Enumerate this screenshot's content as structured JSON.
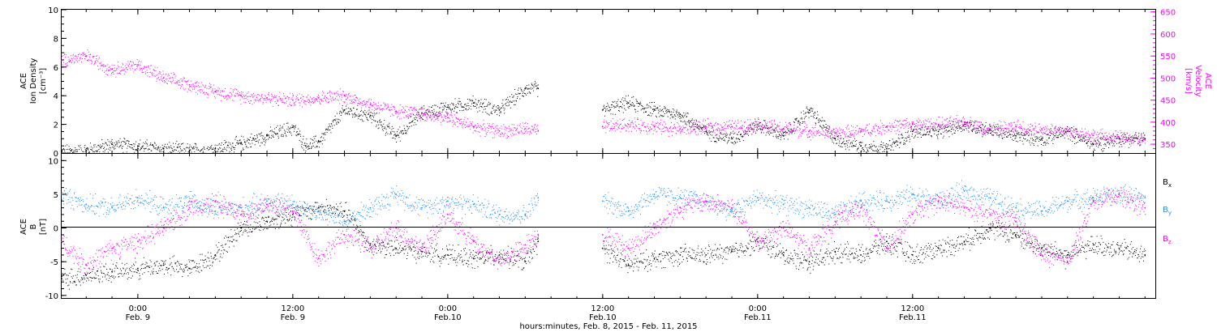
{
  "xlabel": "hours:minutes, Feb.  8, 2015 - Feb. 11, 2015",
  "x_ticks": [
    {
      "time": "0:00",
      "date": "Feb. 9"
    },
    {
      "time": "12:00",
      "date": "Feb. 9"
    },
    {
      "time": "0:00",
      "date": "Feb.10"
    },
    {
      "time": "12:00",
      "date": "Feb.10"
    },
    {
      "time": "0:00",
      "date": "Feb.11"
    },
    {
      "time": "12:00",
      "date": "Feb.11"
    }
  ],
  "top_panel": {
    "left_label": [
      "ACE",
      "Ion Density",
      "[cm⁻³]"
    ],
    "right_label": [
      "ACE",
      "Velocity",
      "[km/s]"
    ],
    "left_ticks": [
      "0",
      "2",
      "4",
      "6",
      "8",
      "10"
    ],
    "right_ticks": [
      "350",
      "400",
      "450",
      "500",
      "550",
      "600",
      "650"
    ]
  },
  "bottom_panel": {
    "left_label": [
      "ACE",
      "B",
      "[nT]"
    ],
    "left_ticks": [
      "-10",
      "-5",
      "0",
      "5",
      "10"
    ],
    "legend": [
      {
        "name": "B",
        "sub": "x",
        "color": "#000000"
      },
      {
        "name": "B",
        "sub": "y",
        "color": "#1e90ff"
      },
      {
        "name": "B",
        "sub": "z",
        "color": "#ff00ff"
      }
    ]
  },
  "colors": {
    "density": "#000000",
    "velocity": "#ff00ff",
    "bx": "#000000",
    "by": "#1e90ff",
    "bz": "#ff00ff",
    "velocity_axis": "#ff00ff"
  },
  "chart_data": [
    {
      "type": "scatter",
      "title": "",
      "x_unit": "hours from 2015-02-08 00:00 UT",
      "xlim": [
        18.1,
        102.8
      ],
      "gap": [
        55,
        60
      ],
      "series": [
        {
          "name": "Ion Density",
          "axis": "left",
          "ylim": [
            0,
            10
          ],
          "x": [
            18.1,
            20,
            22,
            24,
            26,
            28,
            30,
            32,
            34,
            36,
            37,
            38,
            40,
            42,
            44,
            46,
            48,
            50,
            52,
            54,
            55,
            60,
            62,
            64,
            66,
            68,
            70,
            72,
            74,
            76,
            78,
            80,
            82,
            84,
            86,
            88,
            90,
            92,
            94,
            96,
            98,
            100,
            102
          ],
          "values": [
            0.1,
            0.2,
            0.6,
            0.5,
            0.3,
            0.2,
            0.3,
            0.7,
            1.2,
            1.8,
            0.5,
            0.8,
            3.0,
            2.6,
            1.2,
            2.8,
            3.2,
            3.5,
            3.0,
            4.5,
            4.5,
            3.0,
            3.5,
            3.0,
            2.7,
            1.5,
            1.0,
            2.0,
            1.2,
            3.0,
            1.0,
            0.5,
            0.3,
            1.5,
            1.5,
            2.0,
            1.6,
            1.2,
            1.0,
            1.5,
            0.6,
            1.0,
            1.0
          ]
        },
        {
          "name": "Velocity",
          "axis": "right",
          "ylim": [
            330,
            655
          ],
          "x": [
            18.1,
            20,
            22,
            24,
            26,
            28,
            30,
            32,
            34,
            36,
            38,
            40,
            42,
            44,
            46,
            48,
            50,
            52,
            54,
            55,
            60,
            62,
            64,
            66,
            68,
            70,
            72,
            74,
            76,
            78,
            80,
            82,
            84,
            86,
            88,
            90,
            92,
            94,
            96,
            98,
            100,
            102
          ],
          "values": [
            540,
            550,
            520,
            530,
            500,
            485,
            470,
            460,
            455,
            450,
            455,
            460,
            440,
            425,
            420,
            410,
            390,
            380,
            385,
            380,
            390,
            395,
            390,
            385,
            390,
            390,
            395,
            385,
            380,
            375,
            380,
            390,
            395,
            395,
            400,
            385,
            390,
            385,
            380,
            370,
            365,
            360
          ]
        }
      ]
    },
    {
      "type": "scatter",
      "title": "",
      "x_unit": "hours from 2015-02-08 00:00 UT",
      "xlim": [
        18.1,
        102.8
      ],
      "ylim": [
        -10.5,
        11
      ],
      "gap": [
        55,
        60
      ],
      "series": [
        {
          "name": "Bx",
          "x": [
            18.1,
            20,
            22,
            24,
            26,
            28,
            30,
            32,
            34,
            36,
            38,
            40,
            42,
            44,
            46,
            48,
            50,
            52,
            54,
            55,
            60,
            62,
            64,
            66,
            68,
            70,
            72,
            74,
            76,
            78,
            80,
            82,
            84,
            86,
            88,
            90,
            92,
            94,
            96,
            98,
            100,
            102
          ],
          "values": [
            -7.5,
            -7.0,
            -6.5,
            -6.0,
            -5.5,
            -6.0,
            -4.0,
            0.0,
            1.0,
            2.0,
            3.0,
            2.5,
            -2.5,
            -3.0,
            -3.5,
            -4.0,
            -4.5,
            -4.0,
            -5.0,
            -2.0,
            -3.0,
            -5.5,
            -4.5,
            -4.0,
            -4.0,
            -3.5,
            -2.0,
            -4.0,
            -5.0,
            -3.5,
            -4.0,
            -2.0,
            -4.0,
            -3.0,
            -2.0,
            0.0,
            -1.0,
            -3.0,
            -4.0,
            -2.5,
            -3.0,
            -4.0
          ]
        },
        {
          "name": "By",
          "x": [
            18.1,
            20,
            22,
            24,
            26,
            28,
            30,
            32,
            34,
            36,
            38,
            40,
            42,
            44,
            46,
            48,
            50,
            52,
            54,
            55,
            60,
            62,
            64,
            66,
            68,
            70,
            72,
            74,
            76,
            78,
            80,
            82,
            84,
            86,
            88,
            90,
            92,
            94,
            96,
            98,
            100,
            102
          ],
          "values": [
            5.0,
            3.5,
            3.0,
            4.5,
            3.0,
            4.0,
            2.5,
            3.0,
            4.0,
            3.5,
            2.5,
            1.0,
            3.0,
            5.0,
            3.0,
            4.0,
            3.5,
            2.0,
            2.0,
            4.5,
            4.0,
            2.5,
            5.0,
            4.5,
            4.0,
            2.5,
            4.5,
            3.5,
            3.0,
            2.0,
            4.0,
            4.0,
            5.0,
            4.0,
            5.5,
            4.5,
            3.0,
            2.5,
            4.0,
            4.5,
            5.0,
            4.5
          ]
        },
        {
          "name": "Bz",
          "x": [
            18.1,
            20,
            22,
            24,
            26,
            28,
            30,
            32,
            34,
            36,
            38,
            40,
            42,
            44,
            46,
            48,
            50,
            52,
            54,
            55,
            60,
            62,
            64,
            66,
            68,
            70,
            72,
            74,
            76,
            78,
            80,
            82,
            84,
            86,
            88,
            90,
            92,
            94,
            96,
            98,
            100,
            102
          ],
          "values": [
            -2.0,
            -5.5,
            -3.0,
            -2.0,
            0.0,
            3.0,
            4.0,
            2.0,
            3.5,
            2.5,
            -4.5,
            -1.0,
            -3.0,
            0.0,
            -3.0,
            2.0,
            -2.0,
            -5.0,
            -2.5,
            -1.0,
            -1.0,
            -3.0,
            0.0,
            3.0,
            4.0,
            3.0,
            -2.0,
            0.0,
            -3.0,
            1.0,
            3.0,
            -3.0,
            2.0,
            4.0,
            3.0,
            2.0,
            1.0,
            -4.0,
            -5.0,
            4.0,
            5.0,
            3.0
          ]
        }
      ]
    }
  ]
}
